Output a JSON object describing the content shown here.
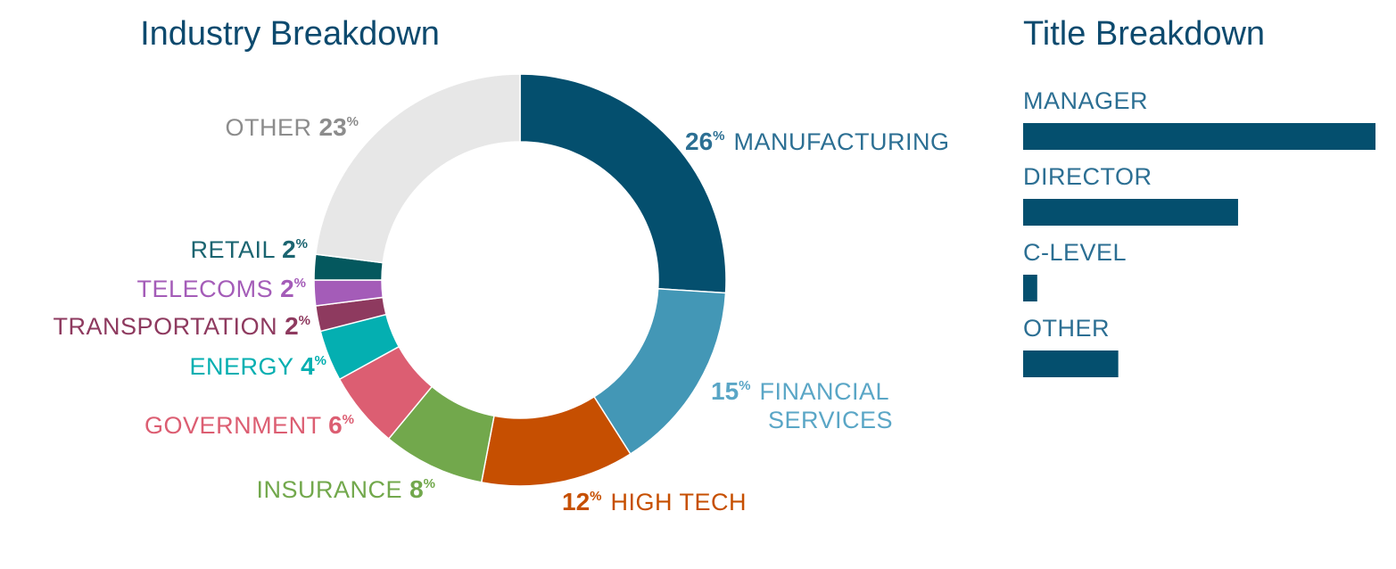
{
  "chart_data": [
    {
      "type": "pie",
      "subtype": "donut",
      "title": "Industry Breakdown",
      "title_color": "#0d4a6e",
      "unit": "%",
      "slices": [
        {
          "label": "MANUFACTURING",
          "label_lines": [
            "MANUFACTURING"
          ],
          "value": 26,
          "color": "#044f6e",
          "label_color": "#2c6f93"
        },
        {
          "label": "FINANCIAL SERVICES",
          "label_lines": [
            "FINANCIAL",
            "SERVICES"
          ],
          "value": 15,
          "color": "#4397b6",
          "label_color": "#5aa6c6"
        },
        {
          "label": "HIGH TECH",
          "label_lines": [
            "HIGH TECH"
          ],
          "value": 12,
          "color": "#c64f01",
          "label_color": "#c64f01"
        },
        {
          "label": "INSURANCE",
          "label_lines": [
            "INSURANCE"
          ],
          "value": 8,
          "color": "#72a84c",
          "label_color": "#72a84c"
        },
        {
          "label": "GOVERNMENT",
          "label_lines": [
            "GOVERNMENT"
          ],
          "value": 6,
          "color": "#dc5e72",
          "label_color": "#dc5e72"
        },
        {
          "label": "ENERGY",
          "label_lines": [
            "ENERGY"
          ],
          "value": 4,
          "color": "#04afb1",
          "label_color": "#04afb1"
        },
        {
          "label": "TRANSPORTATION",
          "label_lines": [
            "TRANSPORTATION"
          ],
          "value": 2,
          "color": "#8e3a5f",
          "label_color": "#8e3a5f"
        },
        {
          "label": "TELECOMS",
          "label_lines": [
            "TELECOMS"
          ],
          "value": 2,
          "color": "#a45cb8",
          "label_color": "#a45cb8"
        },
        {
          "label": "RETAIL",
          "label_lines": [
            "RETAIL"
          ],
          "value": 2,
          "color": "#04585e",
          "label_color": "#1a6470"
        },
        {
          "label": "OTHER",
          "label_lines": [
            "OTHER"
          ],
          "value": 23,
          "color": "#e7e7e7",
          "label_color": "#8c8c8c"
        }
      ]
    },
    {
      "type": "bar",
      "orientation": "horizontal",
      "title": "Title Breakdown",
      "title_color": "#0d4a6e",
      "categories": [
        "MANAGER",
        "DIRECTOR",
        "C-LEVEL",
        "OTHER"
      ],
      "values": [
        100,
        61,
        4,
        27
      ],
      "xlim": [
        0,
        100
      ],
      "bar_color": "#044f6e",
      "label_color": "#2c6f93"
    }
  ]
}
